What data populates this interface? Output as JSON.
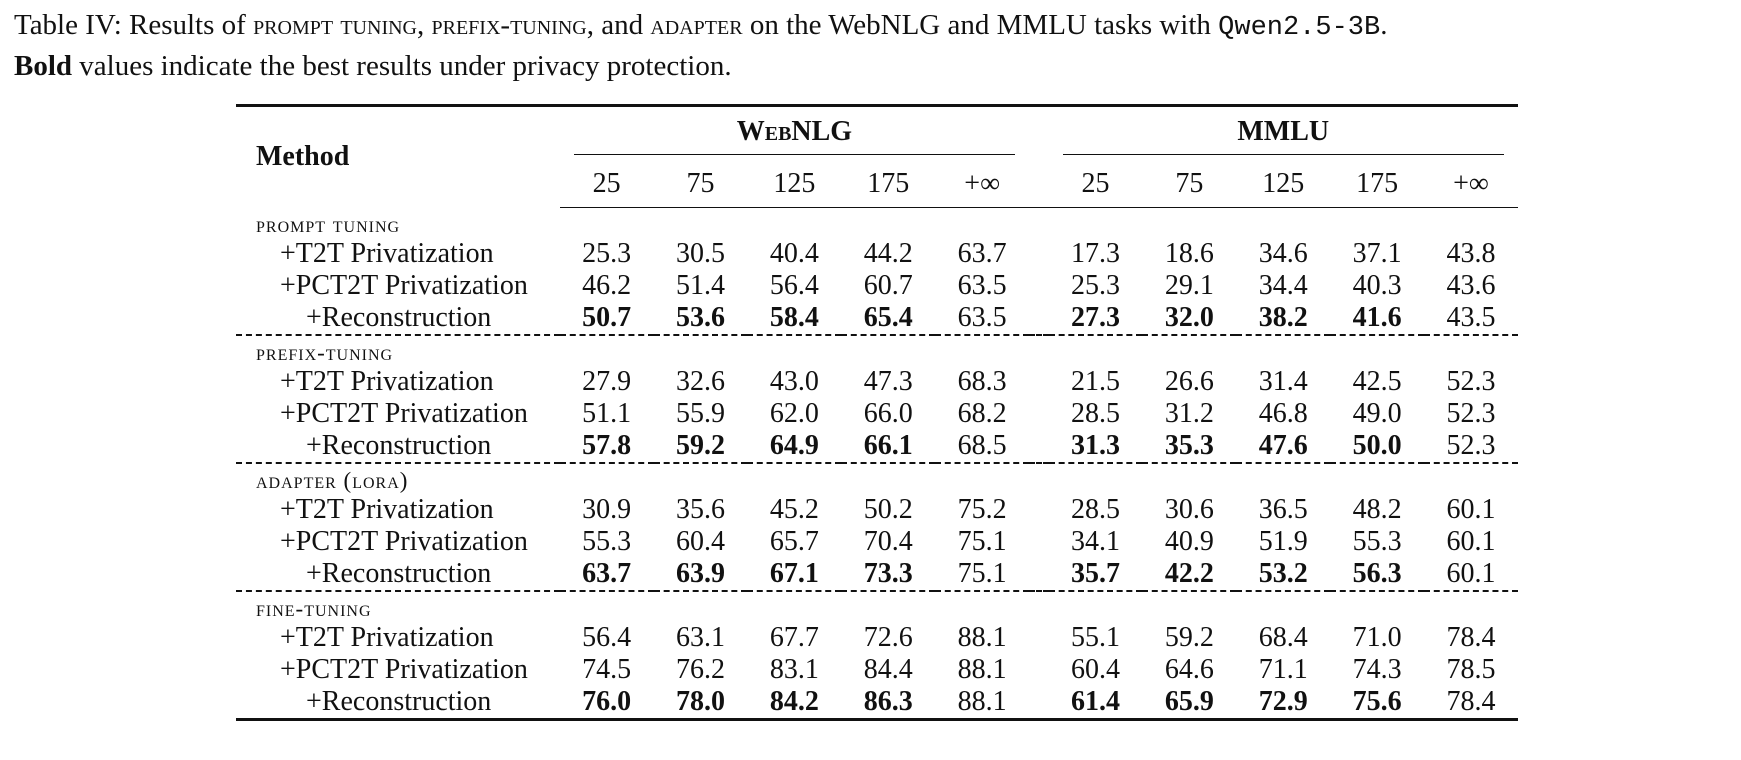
{
  "caption": {
    "prefix": "Table IV: Results of ",
    "m1": "prompt tuning",
    "sep1": ", ",
    "m2": "prefix-tuning",
    "sep2": ", and ",
    "m3": "adapter",
    "mid": " on the WebNLG and MMLU tasks with ",
    "model": "Qwen2.5-3B",
    "end": ".",
    "bold_word": "Bold",
    "rest": " values indicate the best results under privacy protection."
  },
  "table": {
    "method_header": "Method",
    "groups": [
      "WebNLG",
      "MMLU"
    ],
    "columns": [
      "25",
      "75",
      "125",
      "175",
      "+∞"
    ],
    "sections": [
      {
        "name": "prompt tuning",
        "rows": [
          {
            "label": "+T2T Privatization",
            "webnlg": [
              "25.3",
              "30.5",
              "40.4",
              "44.2",
              "63.7"
            ],
            "mmlu": [
              "17.3",
              "18.6",
              "34.6",
              "37.1",
              "43.8"
            ],
            "best": false
          },
          {
            "label": "+PCT2T Privatization",
            "webnlg": [
              "46.2",
              "51.4",
              "56.4",
              "60.7",
              "63.5"
            ],
            "mmlu": [
              "25.3",
              "29.1",
              "34.4",
              "40.3",
              "43.6"
            ],
            "best": false
          },
          {
            "label": "+Reconstruction",
            "webnlg": [
              "50.7",
              "53.6",
              "58.4",
              "65.4",
              "63.5"
            ],
            "mmlu": [
              "27.3",
              "32.0",
              "38.2",
              "41.6",
              "43.5"
            ],
            "best": true
          }
        ]
      },
      {
        "name": "prefix-tuning",
        "rows": [
          {
            "label": "+T2T Privatization",
            "webnlg": [
              "27.9",
              "32.6",
              "43.0",
              "47.3",
              "68.3"
            ],
            "mmlu": [
              "21.5",
              "26.6",
              "31.4",
              "42.5",
              "52.3"
            ],
            "best": false
          },
          {
            "label": "+PCT2T Privatization",
            "webnlg": [
              "51.1",
              "55.9",
              "62.0",
              "66.0",
              "68.2"
            ],
            "mmlu": [
              "28.5",
              "31.2",
              "46.8",
              "49.0",
              "52.3"
            ],
            "best": false
          },
          {
            "label": "+Reconstruction",
            "webnlg": [
              "57.8",
              "59.2",
              "64.9",
              "66.1",
              "68.5"
            ],
            "mmlu": [
              "31.3",
              "35.3",
              "47.6",
              "50.0",
              "52.3"
            ],
            "best": true
          }
        ]
      },
      {
        "name": "adapter (lora)",
        "rows": [
          {
            "label": "+T2T Privatization",
            "webnlg": [
              "30.9",
              "35.6",
              "45.2",
              "50.2",
              "75.2"
            ],
            "mmlu": [
              "28.5",
              "30.6",
              "36.5",
              "48.2",
              "60.1"
            ],
            "best": false
          },
          {
            "label": "+PCT2T Privatization",
            "webnlg": [
              "55.3",
              "60.4",
              "65.7",
              "70.4",
              "75.1"
            ],
            "mmlu": [
              "34.1",
              "40.9",
              "51.9",
              "55.3",
              "60.1"
            ],
            "best": false
          },
          {
            "label": "+Reconstruction",
            "webnlg": [
              "63.7",
              "63.9",
              "67.1",
              "73.3",
              "75.1"
            ],
            "mmlu": [
              "35.7",
              "42.2",
              "53.2",
              "56.3",
              "60.1"
            ],
            "best": true
          }
        ]
      },
      {
        "name": "fine-tuning",
        "rows": [
          {
            "label": "+T2T Privatization",
            "webnlg": [
              "56.4",
              "63.1",
              "67.7",
              "72.6",
              "88.1"
            ],
            "mmlu": [
              "55.1",
              "59.2",
              "68.4",
              "71.0",
              "78.4"
            ],
            "best": false
          },
          {
            "label": "+PCT2T Privatization",
            "webnlg": [
              "74.5",
              "76.2",
              "83.1",
              "84.4",
              "88.1"
            ],
            "mmlu": [
              "60.4",
              "64.6",
              "71.1",
              "74.3",
              "78.5"
            ],
            "best": false
          },
          {
            "label": "+Reconstruction",
            "webnlg": [
              "76.0",
              "78.0",
              "84.2",
              "86.3",
              "88.1"
            ],
            "mmlu": [
              "61.4",
              "65.9",
              "72.9",
              "75.6",
              "78.4"
            ],
            "best": true
          }
        ]
      }
    ]
  }
}
